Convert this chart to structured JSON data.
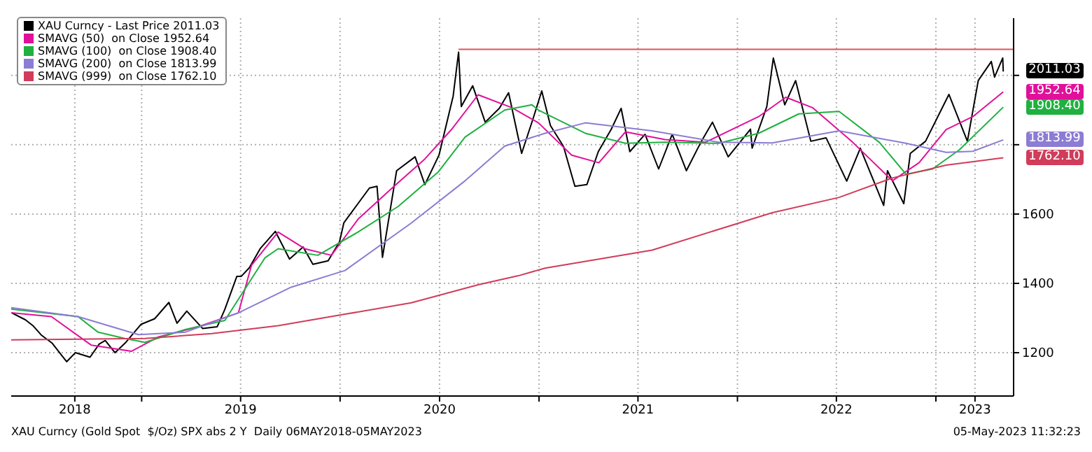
{
  "chart_data": {
    "type": "line",
    "xlim": [
      "2018-05-06",
      "2023-05-24"
    ],
    "ylim": [
      1075,
      2165
    ],
    "xticks": [
      {
        "value": "2018-08-31",
        "label": "2018"
      },
      {
        "value": "2019-01-01",
        "label": null
      },
      {
        "value": "2019-07-02",
        "label": "2019"
      },
      {
        "value": "2020-01-01",
        "label": null
      },
      {
        "value": "2020-07-02",
        "label": "2020"
      },
      {
        "value": "2021-01-01",
        "label": null
      },
      {
        "value": "2021-07-02",
        "label": "2021"
      },
      {
        "value": "2022-01-01",
        "label": null
      },
      {
        "value": "2022-07-02",
        "label": "2022"
      },
      {
        "value": "2023-01-01",
        "label": null
      },
      {
        "value": "2023-03-14",
        "label": "2023"
      }
    ],
    "yticks": [
      1200,
      1400,
      1600,
      {
        "value": 1800,
        "label": null
      },
      {
        "value": 2000,
        "label": null
      }
    ],
    "grid": true,
    "legend": "top left",
    "line_style": "solid",
    "marker": "none",
    "series": [
      {
        "name": "XAU Curncy - Last Price 2011.03",
        "color": "#000000",
        "x": [
          "2018-05-07",
          "2018-06-01",
          "2018-06-15",
          "2018-07-01",
          "2018-07-20",
          "2018-08-16",
          "2018-09-01",
          "2018-09-28",
          "2018-10-15",
          "2018-10-26",
          "2018-11-13",
          "2018-12-03",
          "2018-12-31",
          "2019-01-25",
          "2019-02-20",
          "2019-03-07",
          "2019-03-25",
          "2019-04-23",
          "2019-05-20",
          "2019-06-03",
          "2019-06-25",
          "2019-07-03",
          "2019-07-18",
          "2019-08-07",
          "2019-09-04",
          "2019-09-30",
          "2019-10-25",
          "2019-11-12",
          "2019-12-10",
          "2019-12-31",
          "2020-01-08",
          "2020-02-24",
          "2020-03-09",
          "2020-03-19",
          "2020-04-14",
          "2020-05-18",
          "2020-06-05",
          "2020-07-01",
          "2020-07-27",
          "2020-08-06",
          "2020-08-11",
          "2020-09-01",
          "2020-09-24",
          "2020-10-20",
          "2020-11-06",
          "2020-11-30",
          "2020-12-22",
          "2021-01-06",
          "2021-01-22",
          "2021-02-15",
          "2021-03-08",
          "2021-03-30",
          "2021-04-20",
          "2021-05-14",
          "2021-06-01",
          "2021-06-17",
          "2021-07-15",
          "2021-08-09",
          "2021-09-03",
          "2021-09-29",
          "2021-10-25",
          "2021-11-16",
          "2021-12-15",
          "2022-01-25",
          "2022-01-28",
          "2022-02-24",
          "2022-03-08",
          "2022-03-29",
          "2022-04-18",
          "2022-05-16",
          "2022-06-13",
          "2022-07-21",
          "2022-08-15",
          "2022-09-27",
          "2022-10-04",
          "2022-11-03",
          "2022-11-15",
          "2022-12-13",
          "2023-01-25",
          "2023-02-28",
          "2023-03-20",
          "2023-04-13",
          "2023-04-19",
          "2023-05-04",
          "2023-05-05"
        ],
        "values": [
          1315,
          1295,
          1278,
          1250,
          1228,
          1174,
          1200,
          1187,
          1225,
          1235,
          1200,
          1230,
          1282,
          1298,
          1345,
          1285,
          1320,
          1270,
          1275,
          1325,
          1420,
          1420,
          1445,
          1500,
          1550,
          1470,
          1505,
          1455,
          1465,
          1520,
          1575,
          1675,
          1680,
          1475,
          1725,
          1765,
          1685,
          1770,
          1940,
          2067,
          1910,
          1970,
          1865,
          1905,
          1950,
          1775,
          1880,
          1955,
          1855,
          1795,
          1680,
          1685,
          1780,
          1845,
          1905,
          1780,
          1830,
          1730,
          1830,
          1725,
          1805,
          1865,
          1765,
          1845,
          1790,
          1910,
          2050,
          1915,
          1985,
          1810,
          1820,
          1695,
          1790,
          1625,
          1725,
          1630,
          1775,
          1810,
          1945,
          1810,
          1985,
          2040,
          1995,
          2050,
          2011.03
        ]
      },
      {
        "name": "SMAVG (50)  on Close 1952.64",
        "color": "#e0109a",
        "x": [
          "2018-05-06",
          "2018-07-19",
          "2018-09-30",
          "2018-12-13",
          "2019-01-31",
          "2019-04-15",
          "2019-06-28",
          "2019-07-22",
          "2019-09-09",
          "2019-10-28",
          "2019-12-16",
          "2020-02-03",
          "2020-04-05",
          "2020-06-05",
          "2020-07-24",
          "2020-09-11",
          "2020-11-12",
          "2020-12-31",
          "2021-03-02",
          "2021-04-21",
          "2021-06-09",
          "2021-08-21",
          "2021-11-03",
          "2022-02-09",
          "2022-03-31",
          "2022-05-19",
          "2022-08-01",
          "2022-10-13",
          "2022-12-01",
          "2023-01-20",
          "2023-03-10",
          "2023-05-05"
        ],
        "values": [
          1315,
          1304,
          1222,
          1204,
          1245,
          1275,
          1315,
          1452,
          1548,
          1500,
          1481,
          1585,
          1674,
          1759,
          1844,
          1944,
          1907,
          1863,
          1770,
          1748,
          1837,
          1815,
          1807,
          1881,
          1937,
          1907,
          1807,
          1696,
          1748,
          1844,
          1881,
          1952.64
        ]
      },
      {
        "name": "SMAVG (100)  on Close 1908.40",
        "color": "#20b040",
        "x": [
          "2018-05-06",
          "2018-09-06",
          "2018-10-13",
          "2018-12-01",
          "2019-01-07",
          "2019-03-22",
          "2019-06-03",
          "2019-08-16",
          "2019-09-09",
          "2019-11-21",
          "2020-02-03",
          "2020-04-17",
          "2020-06-30",
          "2020-08-18",
          "2020-10-30",
          "2020-12-19",
          "2020-12-31",
          "2021-03-27",
          "2021-06-09",
          "2021-08-21",
          "2021-11-28",
          "2022-02-09",
          "2022-04-24",
          "2022-07-07",
          "2022-09-19",
          "2022-11-07",
          "2022-12-26",
          "2023-02-13",
          "2023-05-05"
        ],
        "values": [
          1326,
          1304,
          1259,
          1241,
          1230,
          1267,
          1293,
          1474,
          1500,
          1481,
          1548,
          1622,
          1722,
          1822,
          1900,
          1915,
          1900,
          1833,
          1804,
          1807,
          1804,
          1833,
          1889,
          1896,
          1807,
          1715,
          1730,
          1785,
          1908.4
        ]
      },
      {
        "name": "SMAVG (200)  on Close 1813.99",
        "color": "#8c7cd4",
        "x": [
          "2018-05-06",
          "2018-09-06",
          "2018-12-26",
          "2019-03-22",
          "2019-06-28",
          "2019-10-03",
          "2020-01-10",
          "2020-05-11",
          "2020-08-18",
          "2020-10-30",
          "2021-01-12",
          "2021-03-27",
          "2021-07-28",
          "2021-11-28",
          "2022-03-06",
          "2022-07-07",
          "2022-11-07",
          "2023-01-20",
          "2023-03-10",
          "2023-05-05"
        ],
        "values": [
          1330,
          1304,
          1252,
          1259,
          1315,
          1389,
          1437,
          1574,
          1696,
          1796,
          1833,
          1863,
          1840,
          1807,
          1805,
          1840,
          1804,
          1778,
          1781,
          1813.99
        ]
      },
      {
        "name": "SMAVG (999)  on Close 1762.10",
        "color": "#d03c5a",
        "x": [
          "2018-05-06",
          "2019-01-07",
          "2019-05-10",
          "2019-09-09",
          "2020-01-10",
          "2020-05-11",
          "2020-09-11",
          "2020-11-24",
          "2021-01-12",
          "2021-07-28",
          "2022-03-06",
          "2022-07-07",
          "2022-10-13",
          "2023-01-20",
          "2023-05-05"
        ],
        "values": [
          1237,
          1241,
          1255,
          1278,
          1311,
          1344,
          1396,
          1422,
          1444,
          1496,
          1604,
          1648,
          1704,
          1741,
          1762.1
        ]
      },
      {
        "color": "#e05060",
        "x": [
          "2020-08-06",
          "2023-05-24"
        ],
        "values": [
          2075,
          2075
        ]
      }
    ],
    "annotations": [
      {
        "text": "2011.03",
        "x": "2023-05-05",
        "y": 2011.03
      },
      {
        "text": "1952.64",
        "x": "2023-05-05",
        "y": 1952.64
      },
      {
        "text": "1908.40",
        "x": "2023-05-05",
        "y": 1908.4
      },
      {
        "text": "1813.99",
        "x": "2023-05-05",
        "y": 1813.99
      },
      {
        "text": "1762.10",
        "x": "2023-05-05",
        "y": 1762.1
      },
      "XAU Curncy (Gold Spot  $/Oz) SPX abs 2 Y  Daily 06MAY2018-05MAY2023",
      "05-May-2023 11:32:23"
    ]
  }
}
